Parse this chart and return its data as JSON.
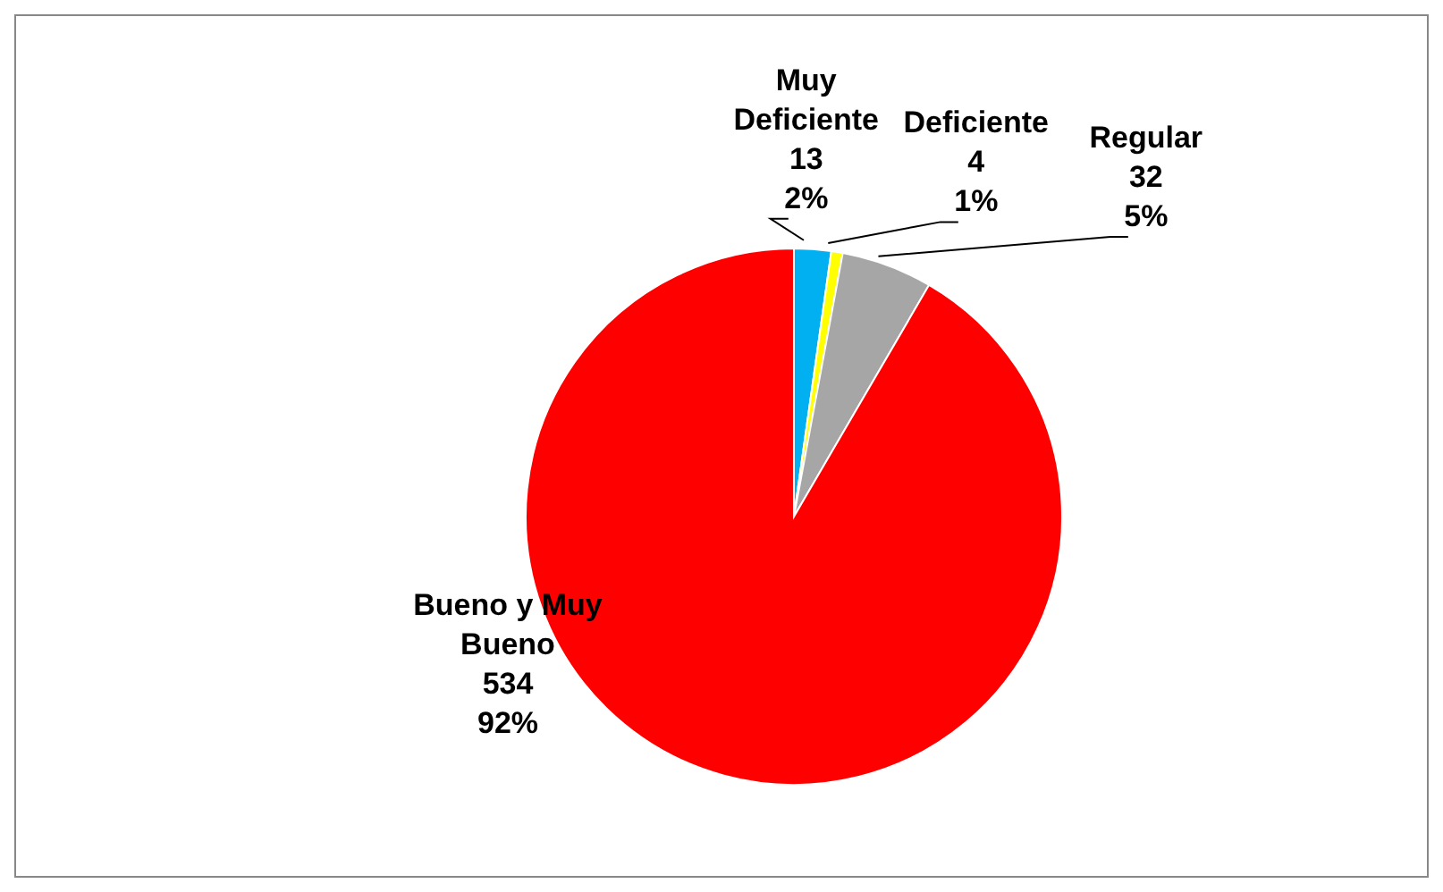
{
  "chart_data": {
    "type": "pie",
    "categories": [
      "Muy Deficiente",
      "Deficiente",
      "Regular",
      "Bueno y Muy Bueno"
    ],
    "values": [
      13,
      4,
      32,
      534
    ],
    "colors": [
      "#00b0f0",
      "#ffff00",
      "#a6a6a6",
      "#ff0000"
    ],
    "value_labels": [
      "13\n2%",
      "4\n1%",
      "32\n5%",
      "534\n92%"
    ],
    "legend": false
  }
}
